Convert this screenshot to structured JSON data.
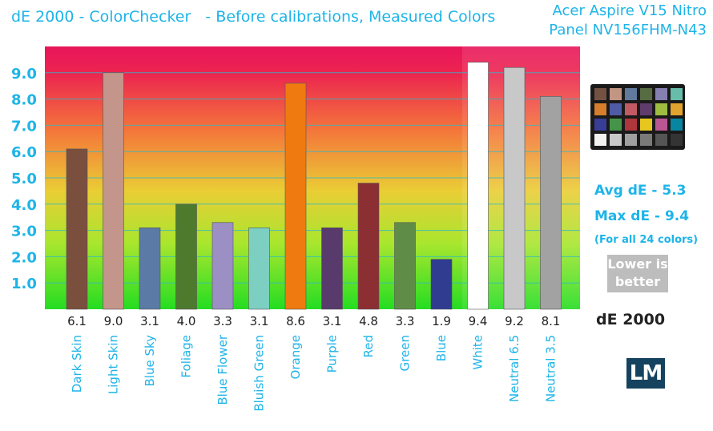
{
  "header": {
    "title": "dE 2000 - ColorChecker   - Before calibrations, Measured Colors",
    "device_line1": "Acer Aspire V15 Nitro",
    "device_line2": "Panel NV156FHM-N43"
  },
  "stats": {
    "avg": "Avg dE - 5.3",
    "max": "Max dE - 9.4",
    "note": "(For all 24 colors)",
    "lower_line1": "Lower is",
    "lower_line2": "better",
    "metric": "dE 2000"
  },
  "logo": {
    "text": "LM"
  },
  "colorchecker": {
    "patches": [
      "#735244",
      "#c29682",
      "#627a9d",
      "#576c43",
      "#8580b1",
      "#67bdaa",
      "#d67e2c",
      "#505ba6",
      "#c15a63",
      "#5e3c6c",
      "#9dbc40",
      "#e0a32e",
      "#383d96",
      "#469449",
      "#af363c",
      "#e7c71f",
      "#bb5695",
      "#0885a1",
      "#f3f3f2",
      "#c8c8c8",
      "#a0a0a0",
      "#7a7a79",
      "#555555",
      "#343434"
    ]
  },
  "chart_data": {
    "type": "bar",
    "title": "dE 2000 - ColorChecker   - Before calibrations, Measured Colors",
    "ylim": [
      0,
      10
    ],
    "yticks": [
      "1.0",
      "2.0",
      "3.0",
      "4.0",
      "5.0",
      "6.0",
      "7.0",
      "8.0",
      "9.0"
    ],
    "categories": [
      "Dark Skin",
      "Light Skin",
      "Blue Sky",
      "Foliage",
      "Blue Flower",
      "Bluish Green",
      "Orange",
      "Purple",
      "Red",
      "Green",
      "Blue",
      "White",
      "Neutral 6.5",
      "Neutral 3.5"
    ],
    "values": [
      6.1,
      9.0,
      3.1,
      4.0,
      3.3,
      3.1,
      8.6,
      3.1,
      4.8,
      3.3,
      1.9,
      9.4,
      9.2,
      8.1
    ],
    "value_labels": [
      "6.1",
      "9.0",
      "3.1",
      "4.0",
      "3.3",
      "3.1",
      "8.6",
      "3.1",
      "4.8",
      "3.3",
      "1.9",
      "9.4",
      "9.2",
      "8.1"
    ],
    "colors": [
      "#7b4f3d",
      "#c4958a",
      "#5b7aa6",
      "#4e7a2e",
      "#9b8fc4",
      "#7dcfc2",
      "#ef7a10",
      "#583a6d",
      "#8c2f32",
      "#5f8d48",
      "#2f3c8f",
      "#ffffff",
      "#c8c8c8",
      "#a2a2a2"
    ]
  }
}
